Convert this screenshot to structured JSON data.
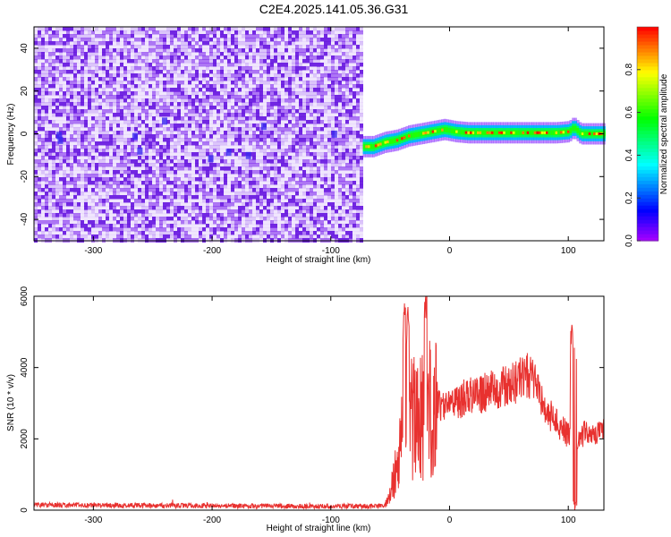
{
  "figure": {
    "title": "C2E4.2025.141.05.36.G31"
  },
  "chart_data": [
    {
      "type": "heatmap",
      "xlabel": "Height of straight line (km)",
      "ylabel": "Frequency (Hz)",
      "xlim": [
        -350,
        130
      ],
      "ylim": [
        -50,
        50
      ],
      "xticks": [
        -300,
        -200,
        -100,
        0,
        100
      ],
      "yticks": [
        -40,
        -20,
        0,
        20,
        40
      ],
      "noise_region_x": [
        -350,
        -73
      ],
      "ridge": {
        "x": [
          -73,
          -65,
          -55,
          -45,
          -35,
          -25,
          -15,
          -5,
          5,
          15,
          30,
          50,
          70,
          90,
          100,
          104,
          110,
          130
        ],
        "freq": [
          -6,
          -6,
          -4,
          -3,
          -1,
          0,
          1,
          2,
          1,
          0.5,
          0.5,
          0.5,
          0.5,
          0.5,
          1,
          3,
          0,
          0
        ]
      },
      "colorbar": {
        "label": "Normalized spectral amplitude",
        "ticks": [
          "0.0",
          "0.2",
          "0.4",
          "0.6",
          "0.8"
        ],
        "range": [
          0,
          1
        ]
      }
    },
    {
      "type": "line",
      "xlabel": "Height of straight line (km)",
      "ylabel": "SNR (10 * v/v)",
      "xlim": [
        -350,
        130
      ],
      "ylim": [
        0,
        6000
      ],
      "xticks": [
        -300,
        -200,
        -100,
        0,
        100
      ],
      "yticks": [
        0,
        2000,
        4000,
        6000
      ],
      "color": "#e8312f",
      "envelope": {
        "x": [
          -350,
          -300,
          -200,
          -100,
          -55,
          -50,
          -45,
          -40,
          -35,
          -30,
          -25,
          -20,
          -15,
          -10,
          0,
          10,
          20,
          30,
          40,
          50,
          60,
          65,
          70,
          75,
          80,
          90,
          100,
          105,
          110,
          120,
          130
        ],
        "y": [
          150,
          140,
          120,
          110,
          110,
          400,
          1200,
          2000,
          2500,
          2600,
          2700,
          2800,
          2800,
          2900,
          3000,
          3100,
          3200,
          3300,
          3400,
          3500,
          3700,
          3800,
          3700,
          3300,
          2800,
          2500,
          2100,
          1800,
          2100,
          2200,
          2200
        ]
      },
      "spikes": [
        {
          "x": -38,
          "y": 5800
        },
        {
          "x": -35,
          "y": 5700
        },
        {
          "x": -20,
          "y": 6000
        },
        {
          "x": 103,
          "y": 5200
        },
        {
          "x": 106,
          "y": 5100
        }
      ]
    }
  ]
}
